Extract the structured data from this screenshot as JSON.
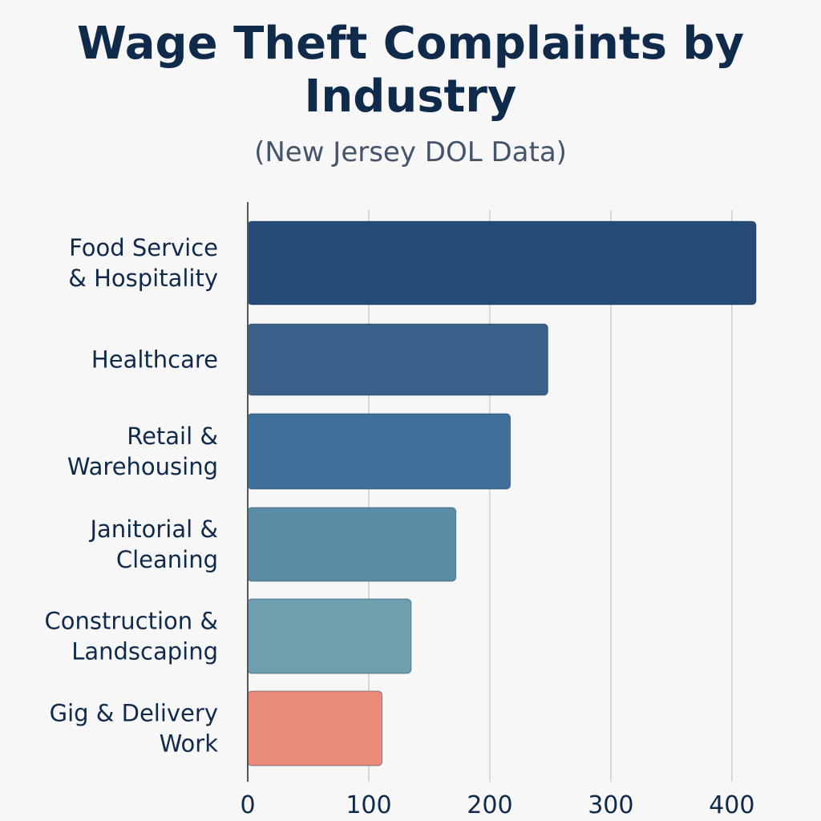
{
  "chart_data": {
    "type": "bar",
    "orientation": "horizontal",
    "title": "Wage Theft Complaints by Industry",
    "subtitle": "(New Jersey DOL Data)",
    "xlabel": "",
    "ylabel": "",
    "categories": [
      [
        "Food Service",
        "& Hospitality"
      ],
      [
        "Healthcare"
      ],
      [
        "Retail &",
        "Warehousing"
      ],
      [
        "Janitorial &",
        "Cleaning"
      ],
      [
        "Construction &",
        "Landscaping"
      ],
      [
        "Gig & Delivery",
        "Work"
      ]
    ],
    "values": [
      420,
      248,
      217,
      172,
      135,
      111
    ],
    "colors": [
      "#264a76",
      "#3a5f88",
      "#3f7099",
      "#5a8ca6",
      "#6d9fae",
      "#e98b7b"
    ],
    "xlim": [
      0,
      420
    ],
    "xticks": [
      0,
      100,
      200,
      300,
      400
    ],
    "grid": true,
    "legend": false
  }
}
